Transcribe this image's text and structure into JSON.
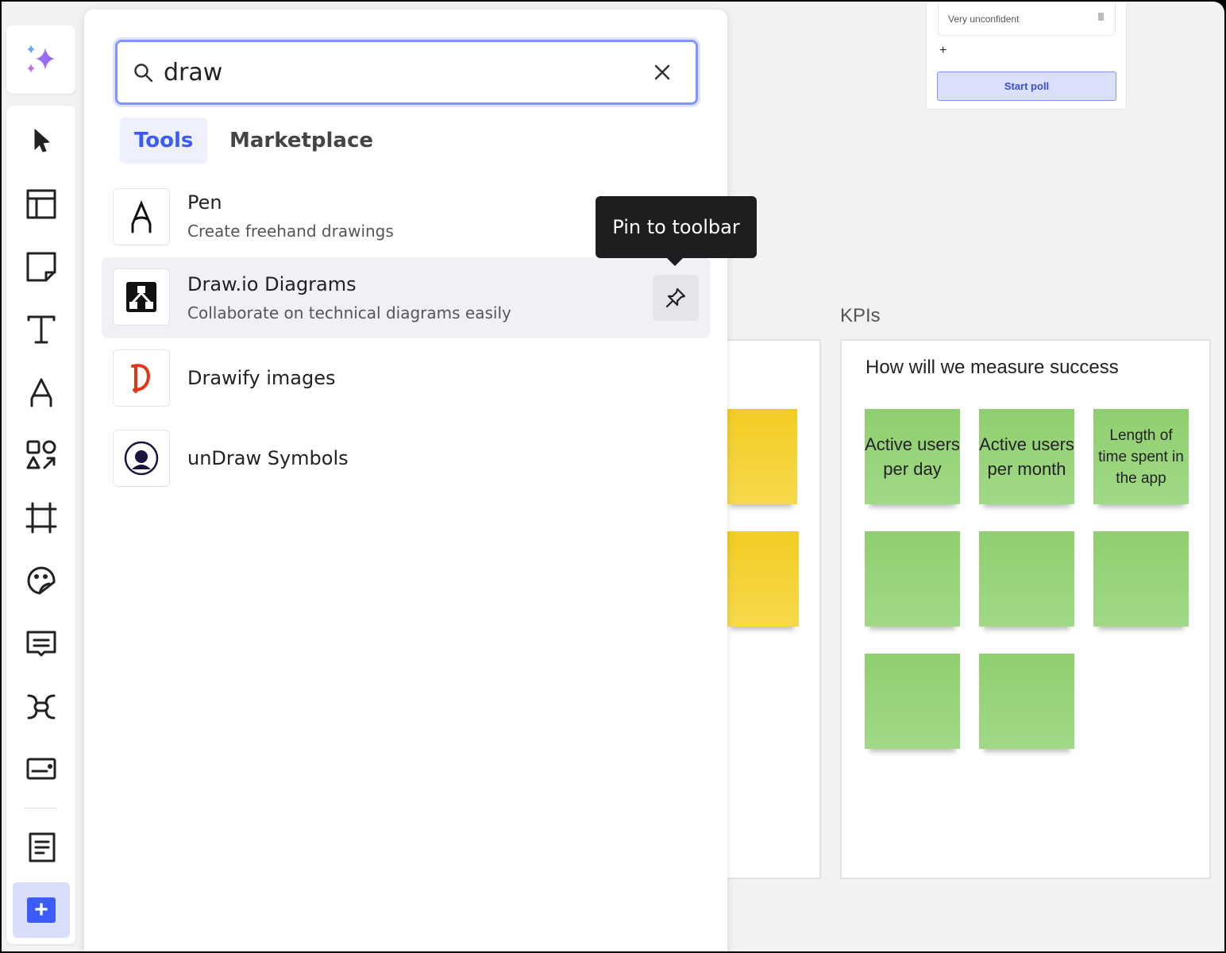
{
  "search": {
    "value": "draw",
    "placeholder": "Search"
  },
  "tabs": [
    {
      "label": "Tools",
      "active": true
    },
    {
      "label": "Marketplace",
      "active": false
    }
  ],
  "results": [
    {
      "title": "Pen",
      "desc": "Create freehand drawings",
      "icon": "pen-icon"
    },
    {
      "title": "Draw.io Diagrams",
      "desc": "Collaborate on technical diagrams easily",
      "icon": "drawio-icon",
      "highlighted": true
    },
    {
      "title": "Drawify images",
      "desc": "",
      "icon": "drawify-icon"
    },
    {
      "title": "unDraw Symbols",
      "desc": "",
      "icon": "undraw-icon"
    }
  ],
  "tooltip": "Pin to toolbar",
  "poll": {
    "option": "Very unconfident",
    "add": "+",
    "start_label": "Start poll"
  },
  "kpis": {
    "label": "KPIs",
    "heading": "How will we measure success",
    "stickies": [
      "Active users per day",
      "Active users per month",
      "Length of time spent in the app",
      "",
      "",
      "",
      "",
      ""
    ]
  },
  "colors": {
    "accent": "#3c5bff",
    "sticky_green": "#9ad57e",
    "sticky_yellow": "#f4d232",
    "tooltip": "#1e1e20"
  }
}
